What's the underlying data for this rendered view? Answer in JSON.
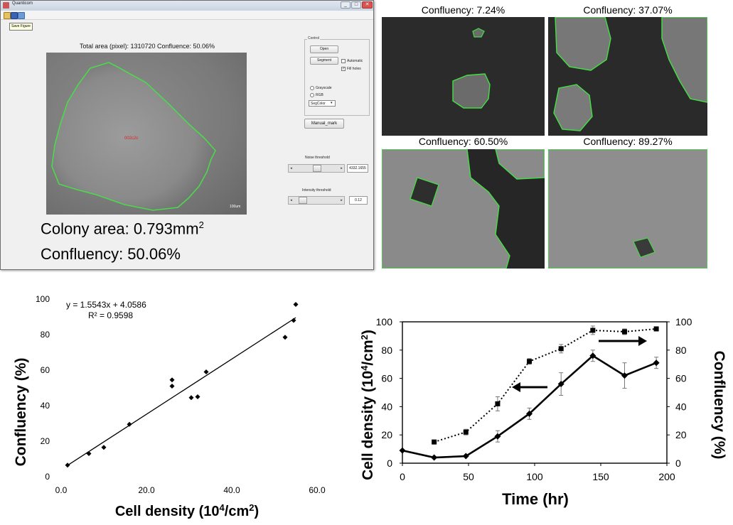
{
  "window": {
    "title": "Quanticom",
    "controls": [
      "_",
      "□",
      "✕"
    ],
    "toolbar_tooltip": "Save Figure",
    "area_line": "Total area (pixel): 1310720  Confluence: 50.06%",
    "image_label": "002c2c",
    "scale_label": "100um",
    "panel_title": "Control",
    "open_button": "Open",
    "segment_button": "Segment",
    "automatic_label": "Automatic",
    "fill_holes_label": "Fill holes",
    "grayscale_label": "Grayscale",
    "rgb_label": "RGB",
    "select_value": "SegColor",
    "manual_mark_button": "Manual_mark",
    "noise_label": "Noise threshold",
    "noise_value": "4332.1655",
    "noise_level": 0.55,
    "intensity_label": "Intensity threshold",
    "intensity_value": "0.12",
    "intensity_level": 0.12
  },
  "overlay": {
    "colony_area_prefix": "Colony area: 0.793mm",
    "colony_area_exp": "2",
    "confluency": "Confluency: 50.06%"
  },
  "tiles": [
    {
      "label": "Confluency: 7.24%",
      "fraction": 0.0724
    },
    {
      "label": "Confluency: 37.07%",
      "fraction": 0.3707
    },
    {
      "label": "Confluency: 60.50%",
      "fraction": 0.605
    },
    {
      "label": "Confluency: 89.27%",
      "fraction": 0.8927
    }
  ],
  "chart_data": [
    {
      "type": "scatter",
      "x": [
        1.5,
        6.5,
        10,
        16,
        26,
        26,
        30.5,
        32,
        34,
        52.5,
        54.5,
        55
      ],
      "y": [
        6.5,
        13,
        16.5,
        29.5,
        51,
        54.5,
        44.5,
        45,
        59,
        78.5,
        88,
        97
      ],
      "trendline": {
        "slope": 1.5543,
        "intercept": 4.0586
      },
      "annotations": [
        "y = 1.5543x + 4.0586",
        "R² = 0.9598"
      ],
      "xlabel_prefix": "Cell density (10",
      "xlabel_exp": "4",
      "xlabel_suffix": "/cm",
      "xlabel_exp2": "2",
      "xlabel_end": ")",
      "ylabel": "Confluency  (%)",
      "xlim": [
        0,
        60
      ],
      "ylim": [
        0,
        100
      ],
      "xticks": [
        "0.0",
        "20.0",
        "40.0",
        "60.0"
      ],
      "yticks": [
        "0",
        "20",
        "40",
        "60",
        "80",
        "100"
      ]
    },
    {
      "type": "line",
      "series": [
        {
          "marker": "diamond",
          "style": "solid",
          "axis": "left",
          "x": [
            0,
            24,
            48,
            72,
            96,
            120,
            144,
            168,
            192
          ],
          "y": [
            9,
            4,
            5,
            19,
            35,
            56,
            76,
            62,
            71
          ],
          "err": [
            0,
            0,
            0,
            4,
            4,
            8,
            4,
            9,
            4
          ]
        },
        {
          "marker": "square",
          "style": "dotted",
          "axis": "right",
          "x": [
            24,
            48,
            72,
            96,
            120,
            144,
            168,
            192
          ],
          "y": [
            15,
            22,
            42,
            72,
            81,
            94,
            93,
            95
          ],
          "err": [
            0,
            2,
            5,
            2,
            3,
            3,
            2,
            1
          ]
        }
      ],
      "xlabel": "Time (hr)",
      "ylabel_prefix": "Cell density (10",
      "ylabel_exp": "4",
      "ylabel_suffix": "/cm",
      "ylabel_exp2": "2",
      "ylabel_end": ")",
      "y2label": "Confluency  (%)",
      "xlim": [
        0,
        200
      ],
      "ylim": [
        0,
        100
      ],
      "xticks": [
        "0",
        "50",
        "100",
        "150",
        "200"
      ],
      "yticks": [
        "0",
        "20",
        "40",
        "60",
        "80",
        "100"
      ],
      "y2ticks": [
        "0",
        "20",
        "40",
        "60",
        "80",
        "100"
      ]
    }
  ]
}
